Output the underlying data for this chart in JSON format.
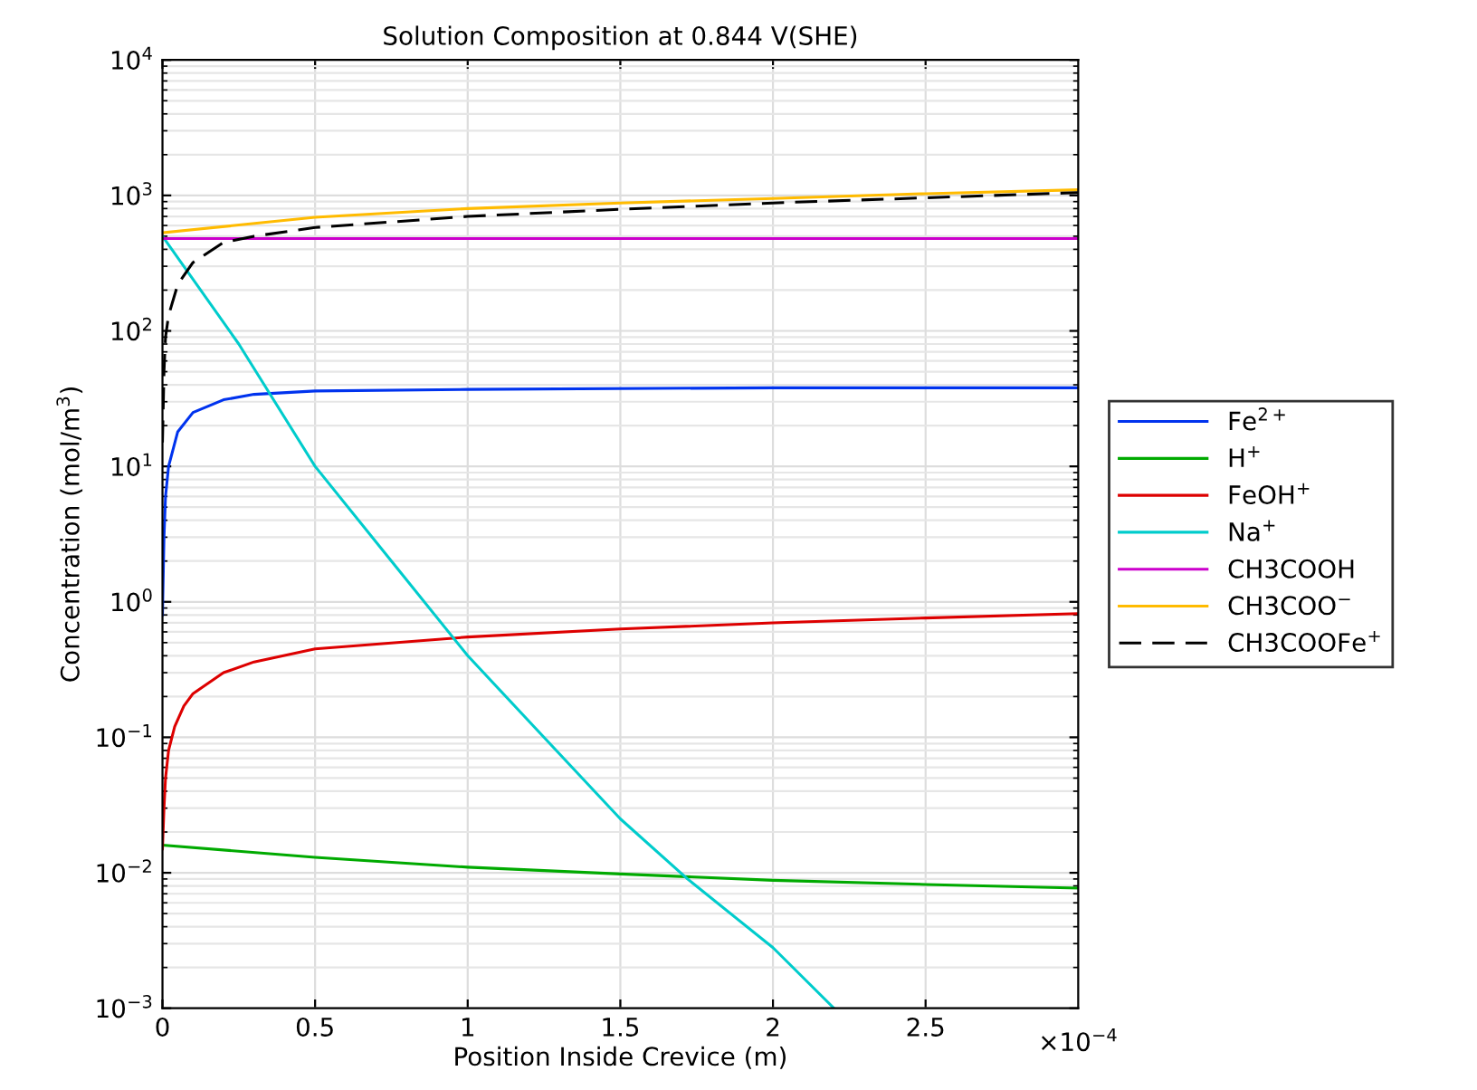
{
  "chart_data": {
    "type": "line",
    "title": "Solution Composition at 0.844 V(SHE)",
    "xlabel": "Position Inside Crevice (m)",
    "ylabel": "Concentration (mol/m$^{3}$)",
    "annotations": [
      "×10$^{−4}$"
    ],
    "log": "y",
    "grid": true,
    "legend": "right",
    "line_style": "solid",
    "marker": "none",
    "xlim": [
      0,
      3
    ],
    "xticks": [
      0,
      0.5,
      1,
      1.5,
      2,
      2.5
    ],
    "ylim": [
      0.001,
      10000
    ],
    "yticks": [
      {
        "value": 0.001,
        "label": "10$^{−3}$"
      },
      {
        "value": 0.01,
        "label": "10$^{−2}$"
      },
      {
        "value": 0.1,
        "label": "10$^{−1}$"
      },
      {
        "value": 1,
        "label": "10$^{0}$"
      },
      {
        "value": 10,
        "label": "10$^{1}$"
      },
      {
        "value": 100,
        "label": "10$^{2}$"
      },
      {
        "value": 1000,
        "label": "10$^{3}$"
      },
      {
        "value": 10000,
        "label": "10$^{4}$"
      }
    ],
    "series": [
      {
        "name": "Fe$^{2+}$",
        "color": "#0033ee",
        "x": [
          0,
          0.005,
          0.01,
          0.02,
          0.05,
          0.1,
          0.2,
          0.3,
          0.5,
          1,
          2,
          3
        ],
        "values": [
          0.8,
          3,
          6,
          10,
          18,
          25,
          31,
          34,
          36,
          37,
          38,
          38
        ]
      },
      {
        "name": "H$^{+}$",
        "color": "#00aa00",
        "x": [
          0,
          0.5,
          1,
          1.5,
          2,
          2.5,
          3
        ],
        "values": [
          0.016,
          0.013,
          0.011,
          0.0098,
          0.0088,
          0.0082,
          0.0077
        ]
      },
      {
        "name": "FeOH$^{+}$",
        "color": "#dd0000",
        "x": [
          0,
          0.005,
          0.01,
          0.02,
          0.04,
          0.07,
          0.1,
          0.2,
          0.3,
          0.5,
          1,
          1.5,
          2,
          2.5,
          3
        ],
        "values": [
          0.015,
          0.03,
          0.05,
          0.08,
          0.12,
          0.17,
          0.21,
          0.3,
          0.36,
          0.45,
          0.55,
          0.63,
          0.7,
          0.76,
          0.82
        ]
      },
      {
        "name": "Na$^{+}$",
        "color": "#00cccc",
        "x": [
          0,
          0.25,
          0.5,
          0.75,
          1,
          1.25,
          1.5,
          1.72,
          2,
          2.2
        ],
        "values": [
          500,
          80,
          10,
          2,
          0.4,
          0.1,
          0.025,
          0.009,
          0.0028,
          0.001
        ]
      },
      {
        "name": "CH3COOH",
        "color": "#cc00cc",
        "x": [
          0,
          3
        ],
        "values": [
          480,
          480
        ]
      },
      {
        "name": "CH3COO$^{−}$",
        "color": "#ffbb00",
        "x": [
          0,
          0.5,
          1,
          1.5,
          2,
          2.5,
          3
        ],
        "values": [
          530,
          690,
          800,
          880,
          950,
          1030,
          1100
        ]
      },
      {
        "name": "CH3COOFe$^{+}$",
        "color": "#000000",
        "line_style": "dashed",
        "x": [
          0,
          0.005,
          0.01,
          0.02,
          0.05,
          0.1,
          0.2,
          0.3,
          0.5,
          1,
          1.5,
          2,
          2.5,
          3
        ],
        "values": [
          15,
          50,
          90,
          130,
          220,
          320,
          450,
          500,
          580,
          700,
          790,
          880,
          960,
          1050
        ]
      }
    ]
  }
}
